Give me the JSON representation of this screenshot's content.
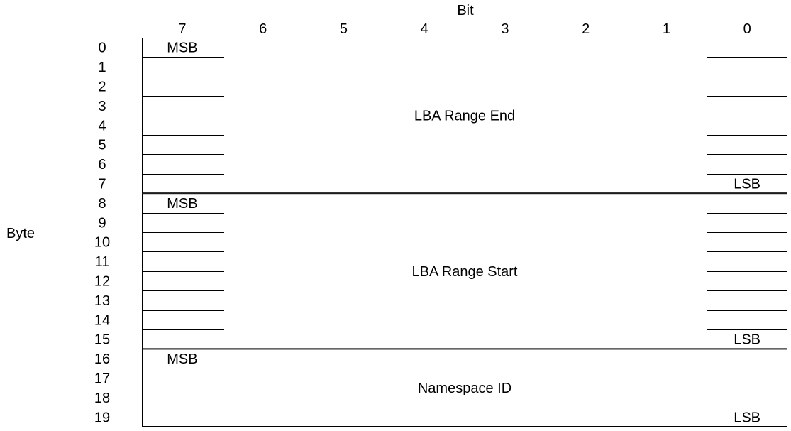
{
  "header": {
    "bit_title": "Bit",
    "byte_title": "Byte"
  },
  "bits": [
    "7",
    "6",
    "5",
    "4",
    "3",
    "2",
    "1",
    "0"
  ],
  "bytes": [
    "0",
    "1",
    "2",
    "3",
    "4",
    "5",
    "6",
    "7",
    "8",
    "9",
    "10",
    "11",
    "12",
    "13",
    "14",
    "15",
    "16",
    "17",
    "18",
    "19"
  ],
  "fields": [
    {
      "name": "LBA Range End",
      "start_byte": 0,
      "end_byte": 7,
      "msb_label": "MSB",
      "lsb_label": "LSB"
    },
    {
      "name": "LBA Range Start",
      "start_byte": 8,
      "end_byte": 15,
      "msb_label": "MSB",
      "lsb_label": "LSB"
    },
    {
      "name": "Namespace ID",
      "start_byte": 16,
      "end_byte": 19,
      "msb_label": "MSB",
      "lsb_label": "LSB"
    }
  ]
}
